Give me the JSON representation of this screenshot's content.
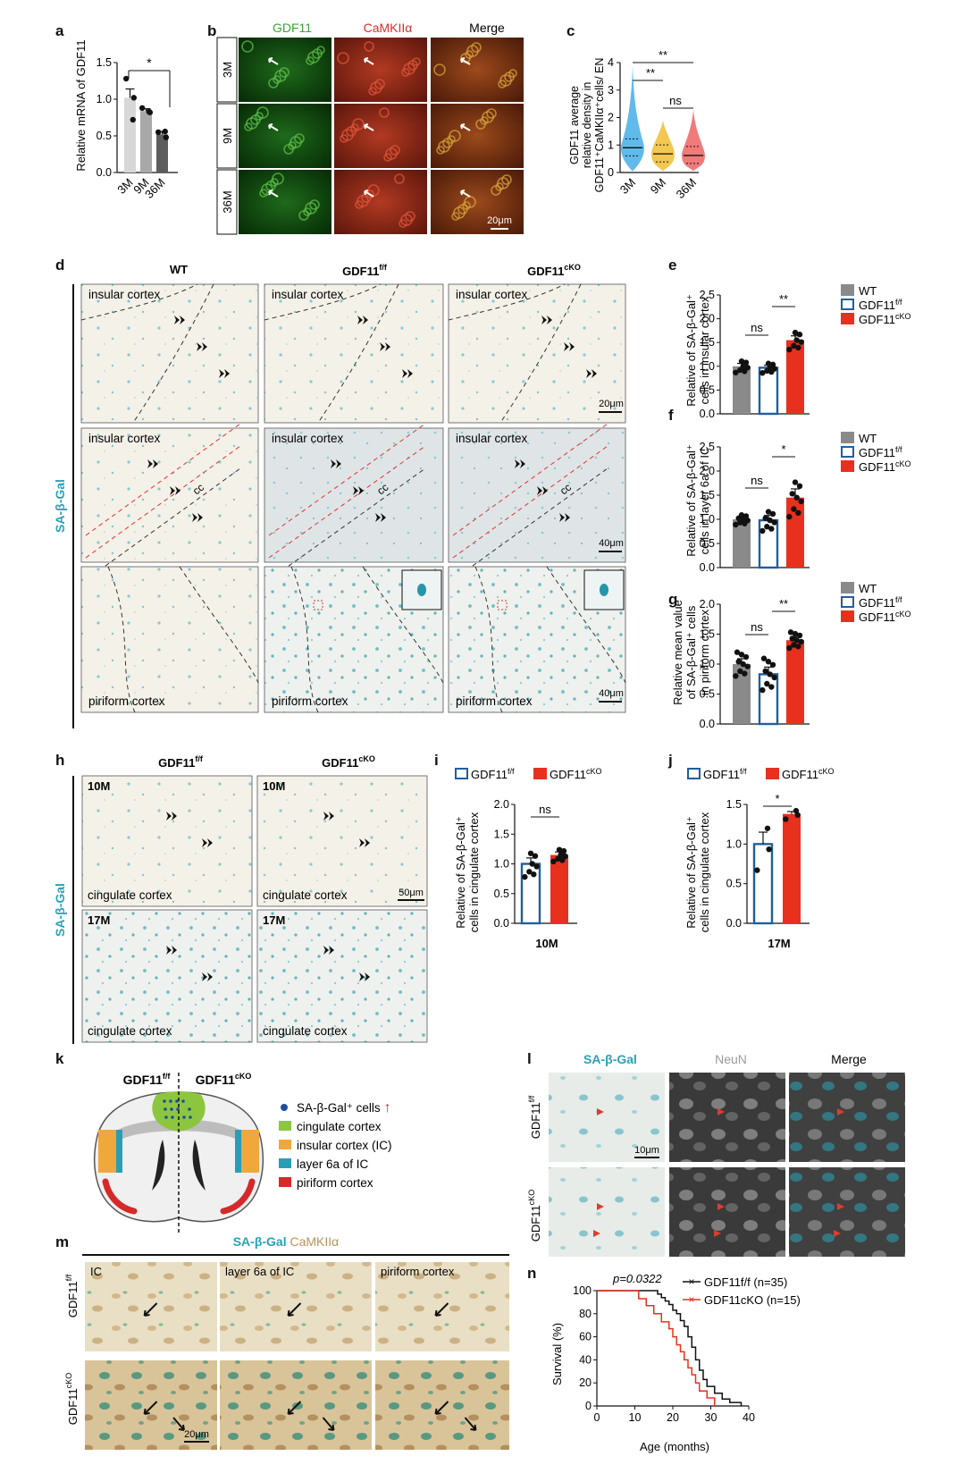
{
  "panel_letters": [
    "a",
    "b",
    "c",
    "d",
    "e",
    "f",
    "g",
    "h",
    "i",
    "j",
    "k",
    "l",
    "m",
    "n"
  ],
  "colors": {
    "wt": "#8a8a8a",
    "ff": "#1f5f9e",
    "cko": "#e8301f",
    "gdf11_text": "#3aa535",
    "camk_text": "#d4302a",
    "sa_text": "#2aa1b6",
    "camk_tan": "#b8925a",
    "neun_text": "#9a9a9a",
    "violin_3m": "#4fb3e8",
    "violin_9m": "#f2c23e",
    "violin_36m": "#ef6b6b"
  },
  "panel_a": {
    "ylabel": "Relative mRNA of GDF11",
    "significance": "*",
    "chart_data": {
      "type": "bar",
      "categories": [
        "3M",
        "9M",
        "36M"
      ],
      "values": [
        1.02,
        0.84,
        0.52
      ],
      "errors": [
        0.12,
        0.03,
        0.04
      ],
      "points": [
        [
          1.28,
          1.02,
          0.72
        ],
        [
          0.88,
          0.82,
          0.83
        ],
        [
          0.55,
          0.48,
          0.56
        ]
      ],
      "bar_colors": [
        "#d8d8d8",
        "#a8a8a8",
        "#5d5d5d"
      ],
      "yticks": [
        "0.0",
        "0.5",
        "1.0",
        "1.5"
      ],
      "ylim": [
        0,
        1.5
      ]
    }
  },
  "panel_b": {
    "columns": [
      "GDF11",
      "CaMKIIα",
      "Merge"
    ],
    "rows": [
      "3M",
      "9M",
      "36M"
    ],
    "scale": "20μm"
  },
  "panel_c": {
    "ylabel": [
      "GDF11 average",
      "relative density in",
      "GDF11⁺CaMKIIα⁺cells/ EN"
    ],
    "sig": [
      "**",
      "**",
      "ns"
    ],
    "chart_data": {
      "type": "violin",
      "categories": [
        "3M",
        "9M",
        "36M"
      ],
      "medians": [
        0.9,
        0.68,
        0.62
      ],
      "max": [
        3.9,
        1.9,
        2.3
      ],
      "yticks": [
        "0",
        "1",
        "2",
        "3",
        "4"
      ],
      "ylim": [
        0,
        4
      ]
    }
  },
  "panel_d": {
    "columns": [
      "WT",
      "GDF11",
      "GDF11"
    ],
    "col_sup": [
      "",
      "f/f",
      "cKO"
    ],
    "side_label": "SA-β-Gal",
    "row_labels": [
      [
        "insular cortex",
        "insular cortex",
        "insular cortex"
      ],
      [
        "insular cortex",
        "insular cortex",
        "insular cortex"
      ],
      [
        "piriform cortex",
        "piriform cortex",
        "piriform cortex"
      ]
    ],
    "cc": "cc",
    "scales": [
      "20μm",
      "40μm",
      "40μm"
    ]
  },
  "legend": {
    "wt": "WT",
    "gdf": "GDF11",
    "ff": "f/f",
    "cko": "cKO"
  },
  "panel_e": {
    "ylabel": [
      "Relative of SA-β-Gal⁺",
      "cells in insular cortex"
    ],
    "sig": [
      "ns",
      "**"
    ],
    "chart_data": {
      "type": "bar",
      "categories": [
        "WT",
        "GDF11f/f",
        "GDF11cKO"
      ],
      "values": [
        1.0,
        0.97,
        1.55
      ],
      "errors": [
        0.06,
        0.05,
        0.09
      ],
      "yticks": [
        "0.0",
        "0.5",
        "1.0",
        "1.5",
        "2.0",
        "2.5"
      ],
      "ylim": [
        0,
        2.5
      ]
    }
  },
  "panel_f": {
    "ylabel": [
      "Relative of SA-β-Gal⁺",
      "cells in layer 6a of IC"
    ],
    "sig": [
      "ns",
      "*"
    ],
    "chart_data": {
      "type": "bar",
      "categories": [
        "WT",
        "GDF11f/f",
        "GDF11cKO"
      ],
      "values": [
        1.0,
        0.98,
        1.45
      ],
      "errors": [
        0.05,
        0.1,
        0.18
      ],
      "yticks": [
        "0.0",
        "0.5",
        "1.0",
        "1.5",
        "2.0",
        "2.5"
      ],
      "ylim": [
        0,
        2.5
      ]
    }
  },
  "panel_g": {
    "ylabel": [
      "Relative mean value",
      "of SA-β-Gal⁺ cells",
      "in piriform cortex"
    ],
    "sig": [
      "ns",
      "**"
    ],
    "chart_data": {
      "type": "bar",
      "categories": [
        "WT",
        "GDF11f/f",
        "GDF11cKO"
      ],
      "values": [
        1.0,
        0.83,
        1.4
      ],
      "errors": [
        0.09,
        0.12,
        0.06
      ],
      "yticks": [
        "0.0",
        "0.5",
        "1.0",
        "1.5",
        "2.0"
      ],
      "ylim": [
        0,
        2.0
      ]
    }
  },
  "panel_h": {
    "columns": [
      "GDF11",
      "GDF11"
    ],
    "col_sup": [
      "f/f",
      "cKO"
    ],
    "side_label": "SA-β-Gal",
    "rows": [
      "10M",
      "17M"
    ],
    "region": "cingulate cortex",
    "scale": "50μm"
  },
  "panel_i": {
    "ylabel": [
      "Relative of SA-β-Gal⁺",
      "cells in cingulate cortex"
    ],
    "sig": "ns",
    "xlabel": "10M",
    "chart_data": {
      "type": "bar",
      "categories": [
        "GDF11f/f",
        "GDF11cKO"
      ],
      "values": [
        1.0,
        1.15
      ],
      "errors": [
        0.1,
        0.05
      ],
      "yticks": [
        "0.0",
        "0.5",
        "1.0",
        "1.5",
        "2.0"
      ],
      "ylim": [
        0,
        2.0
      ]
    }
  },
  "panel_j": {
    "ylabel": [
      "Relative of SA-β-Gal⁺",
      "cells in cingulate cortex"
    ],
    "sig": "*",
    "xlabel": "17M",
    "chart_data": {
      "type": "bar",
      "categories": [
        "GDF11f/f",
        "GDF11cKO"
      ],
      "values": [
        1.0,
        1.38
      ],
      "errors": [
        0.15,
        0.03
      ],
      "yticks": [
        "0.0",
        "0.5",
        "1.0",
        "1.5"
      ],
      "ylim": [
        0,
        1.5
      ]
    }
  },
  "panel_k": {
    "left": "GDF11",
    "right": "GDF11",
    "left_sup": "f/f",
    "right_sup": "cKO",
    "legend": [
      "SA-β-Gal⁺ cells",
      "cingulate cortex",
      "insular cortex (IC)",
      "layer 6a of IC",
      "piriform cortex"
    ],
    "legend_colors": [
      "#1f4e9a",
      "#8cc63f",
      "#f0a83c",
      "#2a9db5",
      "#d42a2a"
    ],
    "arrow": "↑"
  },
  "panel_l": {
    "columns": [
      "SA-β-Gal",
      "NeuN",
      "Merge"
    ],
    "rows": [
      "GDF11",
      "GDF11"
    ],
    "row_sup": [
      "f/f",
      "cKO"
    ],
    "scale": "10μm"
  },
  "panel_m": {
    "title_a": "SA-β-Gal",
    "title_b": "CaMKIIα",
    "columns": [
      "IC",
      "layer 6a of IC",
      "piriform cortex"
    ],
    "rows": [
      "GDF11",
      "GDF11"
    ],
    "row_sup": [
      "f/f",
      "cKO"
    ],
    "scale": "20μm"
  },
  "panel_n": {
    "p": "p=0.0322",
    "ylabel": "Survival (%)",
    "xlabel": "Age (months)",
    "legend": [
      "GDF11f/f (n=35)",
      "GDF11cKO (n=15)"
    ],
    "chart_data": {
      "type": "line",
      "x_ticks": [
        "0",
        "10",
        "20",
        "30",
        "40"
      ],
      "y_ticks": [
        "0",
        "20",
        "40",
        "60",
        "80",
        "100"
      ],
      "xlim": [
        0,
        40
      ],
      "ylim": [
        0,
        100
      ],
      "series": [
        {
          "name": "GDF11f/f (n=35)",
          "color": "#111111",
          "points": [
            [
              0,
              100
            ],
            [
              15,
              100
            ],
            [
              16,
              97
            ],
            [
              17,
              94
            ],
            [
              18,
              91
            ],
            [
              19,
              88
            ],
            [
              20,
              83
            ],
            [
              21,
              80
            ],
            [
              22,
              74
            ],
            [
              23,
              69
            ],
            [
              24,
              60
            ],
            [
              25,
              51
            ],
            [
              26,
              40
            ],
            [
              27,
              31
            ],
            [
              28,
              23
            ],
            [
              29,
              17
            ],
            [
              31,
              11
            ],
            [
              33,
              6
            ],
            [
              35,
              3
            ],
            [
              38,
              0
            ]
          ]
        },
        {
          "name": "GDF11cKO (n=15)",
          "color": "#e8301f",
          "points": [
            [
              0,
              100
            ],
            [
              10,
              100
            ],
            [
              11,
              93
            ],
            [
              13,
              87
            ],
            [
              15,
              80
            ],
            [
              17,
              73
            ],
            [
              19,
              67
            ],
            [
              20,
              60
            ],
            [
              21,
              53
            ],
            [
              22,
              47
            ],
            [
              23,
              40
            ],
            [
              24,
              33
            ],
            [
              25,
              27
            ],
            [
              26,
              20
            ],
            [
              27,
              13
            ],
            [
              29,
              7
            ],
            [
              31,
              0
            ]
          ]
        }
      ]
    }
  }
}
